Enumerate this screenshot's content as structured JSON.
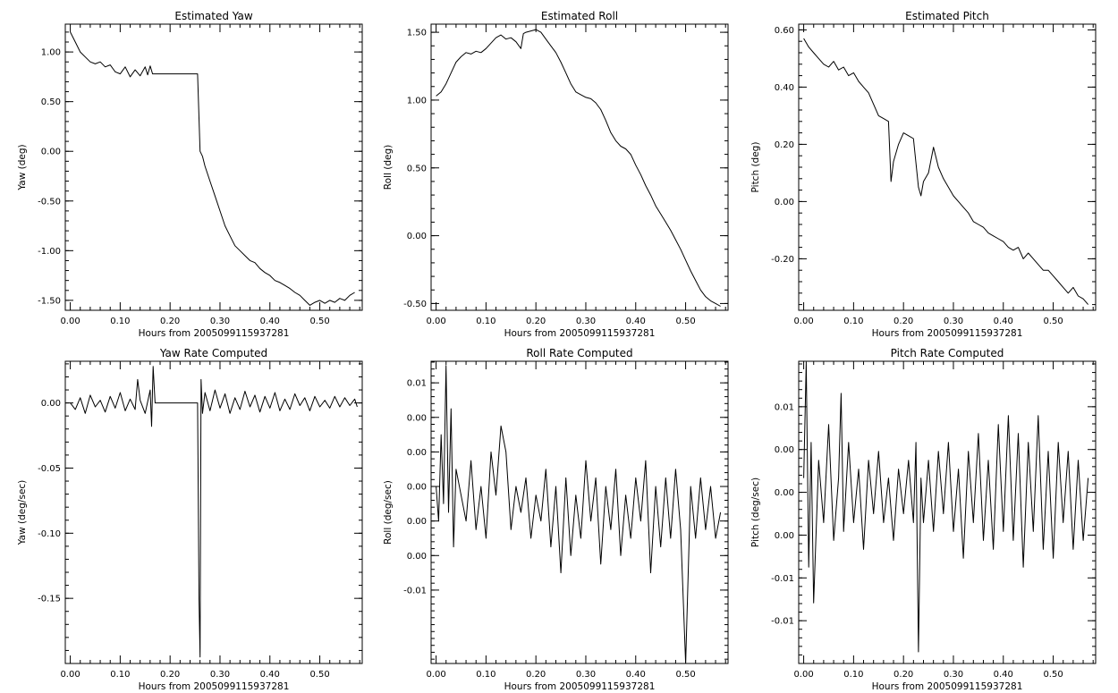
{
  "chart_data": [
    {
      "type": "line",
      "title": "Estimated Yaw",
      "xlabel": "Hours from 2005099115937281",
      "ylabel": "Yaw (deg)",
      "xlim": [
        -0.01,
        0.585
      ],
      "ylim": [
        -1.6,
        1.28
      ],
      "xticks": [
        {
          "v": 0,
          "label": "0.00"
        },
        {
          "v": 0.1,
          "label": "0.10"
        },
        {
          "v": 0.2,
          "label": "0.20"
        },
        {
          "v": 0.3,
          "label": "0.30"
        },
        {
          "v": 0.4,
          "label": "0.40"
        },
        {
          "v": 0.5,
          "label": "0.50"
        }
      ],
      "yticks": [
        {
          "v": 1,
          "label": "1.00"
        },
        {
          "v": 0.5,
          "label": "0.50"
        },
        {
          "v": 0,
          "label": "0.00"
        },
        {
          "v": -0.5,
          "label": "-0.50"
        },
        {
          "v": -1,
          "label": "-1.00"
        },
        {
          "v": -1.5,
          "label": "-1.50"
        }
      ],
      "line_color": "#000000",
      "x": [
        0.0,
        0.01,
        0.02,
        0.03,
        0.04,
        0.05,
        0.06,
        0.07,
        0.08,
        0.09,
        0.1,
        0.11,
        0.12,
        0.13,
        0.14,
        0.15,
        0.155,
        0.16,
        0.165,
        0.17,
        0.2,
        0.22,
        0.25,
        0.255,
        0.26,
        0.265,
        0.27,
        0.28,
        0.29,
        0.3,
        0.31,
        0.32,
        0.33,
        0.34,
        0.35,
        0.36,
        0.37,
        0.38,
        0.39,
        0.4,
        0.41,
        0.42,
        0.43,
        0.44,
        0.45,
        0.46,
        0.47,
        0.48,
        0.49,
        0.5,
        0.51,
        0.52,
        0.53,
        0.54,
        0.55,
        0.56,
        0.57
      ],
      "y": [
        1.2,
        1.1,
        1.0,
        0.95,
        0.9,
        0.88,
        0.9,
        0.85,
        0.87,
        0.8,
        0.78,
        0.85,
        0.75,
        0.82,
        0.76,
        0.85,
        0.77,
        0.86,
        0.78,
        0.78,
        0.78,
        0.78,
        0.78,
        0.78,
        0.0,
        -0.05,
        -0.15,
        -0.3,
        -0.45,
        -0.6,
        -0.75,
        -0.85,
        -0.95,
        -1.0,
        -1.05,
        -1.1,
        -1.12,
        -1.18,
        -1.22,
        -1.25,
        -1.3,
        -1.32,
        -1.35,
        -1.38,
        -1.42,
        -1.45,
        -1.5,
        -1.55,
        -1.52,
        -1.5,
        -1.53,
        -1.5,
        -1.52,
        -1.48,
        -1.5,
        -1.45,
        -1.42
      ]
    },
    {
      "type": "line",
      "title": "Estimated Roll",
      "xlabel": "Hours from 2005099115937281",
      "ylabel": "Roll (deg)",
      "xlim": [
        -0.01,
        0.585
      ],
      "ylim": [
        -0.55,
        1.56
      ],
      "xticks": [
        {
          "v": 0,
          "label": "0.00"
        },
        {
          "v": 0.1,
          "label": "0.10"
        },
        {
          "v": 0.2,
          "label": "0.20"
        },
        {
          "v": 0.3,
          "label": "0.30"
        },
        {
          "v": 0.4,
          "label": "0.40"
        },
        {
          "v": 0.5,
          "label": "0.50"
        }
      ],
      "yticks": [
        {
          "v": 1.5,
          "label": "1.50"
        },
        {
          "v": 1,
          "label": "1.00"
        },
        {
          "v": 0.5,
          "label": "0.50"
        },
        {
          "v": 0,
          "label": "0.00"
        },
        {
          "v": -0.5,
          "label": "-0.50"
        }
      ],
      "line_color": "#000000",
      "x": [
        0.0,
        0.01,
        0.02,
        0.03,
        0.04,
        0.05,
        0.06,
        0.07,
        0.08,
        0.09,
        0.1,
        0.11,
        0.12,
        0.13,
        0.14,
        0.15,
        0.16,
        0.17,
        0.175,
        0.18,
        0.19,
        0.2,
        0.21,
        0.22,
        0.23,
        0.24,
        0.25,
        0.26,
        0.27,
        0.28,
        0.29,
        0.3,
        0.31,
        0.32,
        0.33,
        0.34,
        0.35,
        0.36,
        0.37,
        0.38,
        0.39,
        0.4,
        0.41,
        0.42,
        0.43,
        0.44,
        0.45,
        0.46,
        0.47,
        0.48,
        0.49,
        0.5,
        0.51,
        0.52,
        0.53,
        0.54,
        0.55,
        0.56,
        0.57
      ],
      "y": [
        1.03,
        1.06,
        1.12,
        1.2,
        1.28,
        1.32,
        1.35,
        1.34,
        1.36,
        1.35,
        1.38,
        1.42,
        1.46,
        1.48,
        1.45,
        1.46,
        1.43,
        1.38,
        1.49,
        1.5,
        1.51,
        1.52,
        1.5,
        1.45,
        1.4,
        1.35,
        1.28,
        1.2,
        1.12,
        1.06,
        1.04,
        1.02,
        1.01,
        0.98,
        0.93,
        0.85,
        0.76,
        0.7,
        0.66,
        0.64,
        0.6,
        0.52,
        0.45,
        0.37,
        0.3,
        0.22,
        0.16,
        0.1,
        0.04,
        -0.03,
        -0.1,
        -0.18,
        -0.26,
        -0.33,
        -0.4,
        -0.45,
        -0.48,
        -0.5,
        -0.52
      ]
    },
    {
      "type": "line",
      "title": "Estimated Pitch",
      "xlabel": "Hours from 2005099115937281",
      "ylabel": "Pitch (deg)",
      "xlim": [
        -0.01,
        0.585
      ],
      "ylim": [
        -0.38,
        0.62
      ],
      "xticks": [
        {
          "v": 0,
          "label": "0.00"
        },
        {
          "v": 0.1,
          "label": "0.10"
        },
        {
          "v": 0.2,
          "label": "0.20"
        },
        {
          "v": 0.3,
          "label": "0.30"
        },
        {
          "v": 0.4,
          "label": "0.40"
        },
        {
          "v": 0.5,
          "label": "0.50"
        }
      ],
      "yticks": [
        {
          "v": 0.6,
          "label": "0.60"
        },
        {
          "v": 0.4,
          "label": "0.40"
        },
        {
          "v": 0.2,
          "label": "0.20"
        },
        {
          "v": 0,
          "label": "0.00"
        },
        {
          "v": -0.2,
          "label": "-0.20"
        }
      ],
      "line_color": "#000000",
      "x": [
        0.0,
        0.01,
        0.02,
        0.03,
        0.04,
        0.05,
        0.06,
        0.07,
        0.08,
        0.09,
        0.1,
        0.11,
        0.12,
        0.13,
        0.14,
        0.15,
        0.16,
        0.17,
        0.175,
        0.18,
        0.19,
        0.2,
        0.21,
        0.22,
        0.23,
        0.235,
        0.24,
        0.25,
        0.26,
        0.27,
        0.28,
        0.29,
        0.3,
        0.31,
        0.32,
        0.33,
        0.34,
        0.35,
        0.36,
        0.37,
        0.38,
        0.39,
        0.4,
        0.41,
        0.42,
        0.43,
        0.44,
        0.45,
        0.46,
        0.47,
        0.48,
        0.49,
        0.5,
        0.51,
        0.52,
        0.53,
        0.54,
        0.55,
        0.56,
        0.57
      ],
      "y": [
        0.57,
        0.54,
        0.52,
        0.5,
        0.48,
        0.47,
        0.49,
        0.46,
        0.47,
        0.44,
        0.45,
        0.42,
        0.4,
        0.38,
        0.34,
        0.3,
        0.29,
        0.28,
        0.07,
        0.14,
        0.2,
        0.24,
        0.23,
        0.22,
        0.05,
        0.02,
        0.07,
        0.1,
        0.19,
        0.12,
        0.08,
        0.05,
        0.02,
        0.0,
        -0.02,
        -0.04,
        -0.07,
        -0.08,
        -0.09,
        -0.11,
        -0.12,
        -0.13,
        -0.14,
        -0.16,
        -0.17,
        -0.16,
        -0.2,
        -0.18,
        -0.2,
        -0.22,
        -0.24,
        -0.24,
        -0.26,
        -0.28,
        -0.3,
        -0.32,
        -0.3,
        -0.33,
        -0.34,
        -0.36
      ]
    },
    {
      "type": "line",
      "title": "Yaw Rate Computed",
      "xlabel": "Hours from 2005099115937281",
      "ylabel": "Yaw (deg/sec)",
      "xlim": [
        -0.01,
        0.585
      ],
      "ylim": [
        -0.2,
        0.032
      ],
      "xticks": [
        {
          "v": 0,
          "label": "0.00"
        },
        {
          "v": 0.1,
          "label": "0.10"
        },
        {
          "v": 0.2,
          "label": "0.20"
        },
        {
          "v": 0.3,
          "label": "0.30"
        },
        {
          "v": 0.4,
          "label": "0.40"
        },
        {
          "v": 0.5,
          "label": "0.50"
        }
      ],
      "yticks": [
        {
          "v": 0,
          "label": "0.00"
        },
        {
          "v": -0.05,
          "label": "-0.05"
        },
        {
          "v": -0.1,
          "label": "-0.10"
        },
        {
          "v": -0.15,
          "label": "-0.15"
        }
      ],
      "line_color": "#000000",
      "x": [
        0.0,
        0.01,
        0.02,
        0.03,
        0.04,
        0.05,
        0.06,
        0.07,
        0.08,
        0.09,
        0.1,
        0.11,
        0.12,
        0.13,
        0.135,
        0.14,
        0.15,
        0.16,
        0.163,
        0.166,
        0.17,
        0.2,
        0.255,
        0.258,
        0.26,
        0.262,
        0.265,
        0.27,
        0.28,
        0.29,
        0.3,
        0.31,
        0.32,
        0.33,
        0.34,
        0.35,
        0.36,
        0.37,
        0.38,
        0.39,
        0.4,
        0.41,
        0.42,
        0.43,
        0.44,
        0.45,
        0.46,
        0.47,
        0.48,
        0.49,
        0.5,
        0.51,
        0.52,
        0.53,
        0.54,
        0.55,
        0.56,
        0.57,
        0.575
      ],
      "y": [
        0.0,
        -0.005,
        0.004,
        -0.008,
        0.006,
        -0.003,
        0.002,
        -0.007,
        0.005,
        -0.004,
        0.008,
        -0.006,
        0.003,
        -0.005,
        0.018,
        0.002,
        -0.008,
        0.01,
        -0.018,
        0.028,
        0.0,
        0.0,
        0.0,
        -0.15,
        -0.195,
        0.018,
        -0.008,
        0.008,
        -0.006,
        0.01,
        -0.004,
        0.007,
        -0.008,
        0.004,
        -0.005,
        0.009,
        -0.003,
        0.006,
        -0.007,
        0.005,
        -0.004,
        0.008,
        -0.006,
        0.003,
        -0.005,
        0.007,
        -0.002,
        0.004,
        -0.006,
        0.005,
        -0.003,
        0.002,
        -0.004,
        0.005,
        -0.003,
        0.004,
        -0.002,
        0.003,
        -0.003
      ]
    },
    {
      "type": "line",
      "title": "Roll Rate Computed",
      "xlabel": "Hours from 2005099115937281",
      "ylabel": "Roll (deg/sec)",
      "xlim": [
        -0.01,
        0.585
      ],
      "ylim": [
        -0.0185,
        0.0165
      ],
      "xticks": [
        {
          "v": 0,
          "label": "0.00"
        },
        {
          "v": 0.1,
          "label": "0.10"
        },
        {
          "v": 0.2,
          "label": "0.20"
        },
        {
          "v": 0.3,
          "label": "0.30"
        },
        {
          "v": 0.4,
          "label": "0.40"
        },
        {
          "v": 0.5,
          "label": "0.50"
        }
      ],
      "yticks": [
        {
          "v": 0.014,
          "label": "0.01"
        },
        {
          "v": 0.01,
          "label": "0.00"
        },
        {
          "v": 0.006,
          "label": "0.00"
        },
        {
          "v": 0.002,
          "label": "0.00"
        },
        {
          "v": -0.002,
          "label": "0.00"
        },
        {
          "v": -0.006,
          "label": "0.00"
        },
        {
          "v": -0.01,
          "label": "-0.01"
        }
      ],
      "line_color": "#000000",
      "x": [
        0.0,
        0.005,
        0.01,
        0.015,
        0.02,
        0.025,
        0.03,
        0.035,
        0.04,
        0.05,
        0.06,
        0.07,
        0.08,
        0.09,
        0.1,
        0.11,
        0.12,
        0.13,
        0.14,
        0.15,
        0.16,
        0.17,
        0.18,
        0.19,
        0.2,
        0.21,
        0.22,
        0.23,
        0.24,
        0.25,
        0.26,
        0.27,
        0.28,
        0.29,
        0.3,
        0.31,
        0.32,
        0.33,
        0.34,
        0.35,
        0.36,
        0.37,
        0.38,
        0.39,
        0.4,
        0.41,
        0.42,
        0.43,
        0.44,
        0.45,
        0.46,
        0.47,
        0.48,
        0.49,
        0.5,
        0.51,
        0.52,
        0.53,
        0.54,
        0.55,
        0.56,
        0.57
      ],
      "y": [
        0.002,
        -0.002,
        0.008,
        0.0,
        0.016,
        -0.001,
        0.011,
        -0.005,
        0.004,
        0.001,
        -0.002,
        0.005,
        -0.003,
        0.002,
        -0.004,
        0.006,
        0.001,
        0.009,
        0.006,
        -0.003,
        0.002,
        -0.001,
        0.003,
        -0.004,
        0.001,
        -0.002,
        0.004,
        -0.005,
        0.002,
        -0.008,
        0.003,
        -0.006,
        0.001,
        -0.004,
        0.005,
        -0.002,
        0.003,
        -0.007,
        0.002,
        -0.003,
        0.004,
        -0.006,
        0.001,
        -0.004,
        0.003,
        -0.002,
        0.005,
        -0.008,
        0.002,
        -0.005,
        0.003,
        -0.004,
        0.004,
        -0.003,
        -0.0185,
        0.002,
        -0.004,
        0.003,
        -0.003,
        0.002,
        -0.004,
        -0.001
      ]
    },
    {
      "type": "line",
      "title": "Pitch Rate Computed",
      "xlabel": "Hours from 2005099115937281",
      "ylabel": "Pitch (deg/sec)",
      "xlim": [
        -0.01,
        0.585
      ],
      "ylim": [
        -0.0188,
        0.0151
      ],
      "xticks": [
        {
          "v": 0,
          "label": "0.00"
        },
        {
          "v": 0.1,
          "label": "0.10"
        },
        {
          "v": 0.2,
          "label": "0.20"
        },
        {
          "v": 0.3,
          "label": "0.30"
        },
        {
          "v": 0.4,
          "label": "0.40"
        },
        {
          "v": 0.5,
          "label": "0.50"
        }
      ],
      "yticks": [
        {
          "v": 0.01,
          "label": "0.01"
        },
        {
          "v": 0.0052,
          "label": "0.00"
        },
        {
          "v": 0.0004,
          "label": "0.00"
        },
        {
          "v": -0.0044,
          "label": "0.00"
        },
        {
          "v": -0.0092,
          "label": "-0.01"
        },
        {
          "v": -0.014,
          "label": "-0.01"
        }
      ],
      "line_color": "#000000",
      "x": [
        0.0,
        0.005,
        0.01,
        0.015,
        0.02,
        0.03,
        0.04,
        0.05,
        0.06,
        0.07,
        0.075,
        0.08,
        0.09,
        0.1,
        0.11,
        0.12,
        0.13,
        0.14,
        0.15,
        0.16,
        0.17,
        0.18,
        0.19,
        0.2,
        0.21,
        0.22,
        0.225,
        0.23,
        0.235,
        0.24,
        0.25,
        0.26,
        0.27,
        0.28,
        0.29,
        0.3,
        0.31,
        0.32,
        0.33,
        0.34,
        0.35,
        0.36,
        0.37,
        0.38,
        0.39,
        0.4,
        0.41,
        0.42,
        0.43,
        0.44,
        0.45,
        0.46,
        0.47,
        0.48,
        0.49,
        0.5,
        0.51,
        0.52,
        0.53,
        0.54,
        0.55,
        0.56,
        0.57
      ],
      "y": [
        0.002,
        0.015,
        -0.008,
        0.006,
        -0.012,
        0.004,
        -0.003,
        0.008,
        -0.005,
        0.002,
        0.0115,
        -0.004,
        0.006,
        -0.003,
        0.003,
        -0.006,
        0.004,
        -0.002,
        0.005,
        -0.003,
        0.002,
        -0.005,
        0.003,
        -0.002,
        0.004,
        -0.003,
        0.006,
        -0.0175,
        0.002,
        -0.003,
        0.004,
        -0.004,
        0.005,
        -0.002,
        0.006,
        -0.004,
        0.003,
        -0.007,
        0.005,
        -0.003,
        0.007,
        -0.005,
        0.004,
        -0.006,
        0.008,
        -0.004,
        0.009,
        -0.005,
        0.007,
        -0.008,
        0.006,
        -0.004,
        0.009,
        -0.006,
        0.005,
        -0.007,
        0.006,
        -0.003,
        0.005,
        -0.006,
        0.004,
        -0.005,
        0.002
      ]
    }
  ]
}
